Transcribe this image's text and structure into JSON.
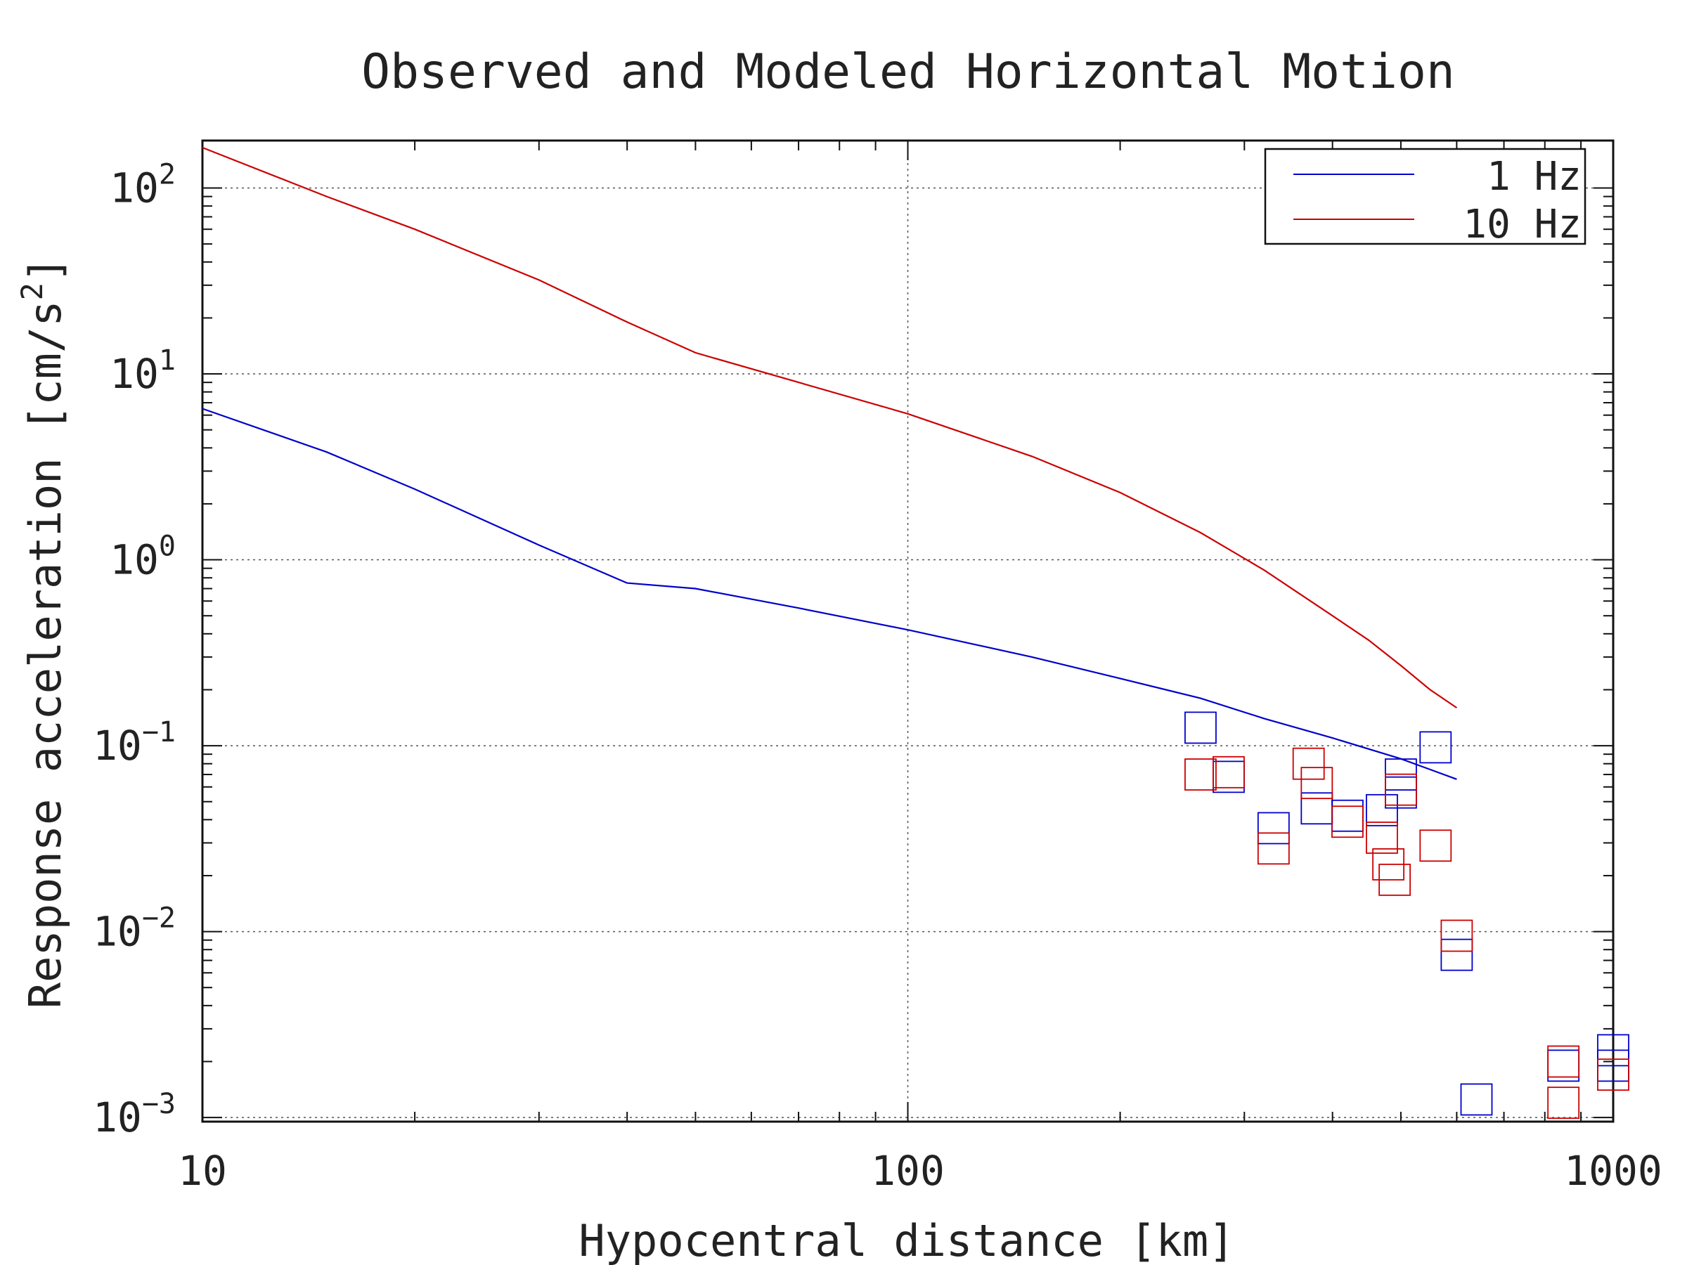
{
  "chart_data": {
    "type": "line",
    "title": "Observed and Modeled Horizontal Motion",
    "xlabel": "Hypocentral distance [km]",
    "ylabel_main": "Response acceleration [cm/s",
    "ylabel_sup": "2",
    "ylabel_close": "]",
    "x_scale": "log",
    "y_scale": "log",
    "xlim": [
      10,
      1000
    ],
    "ylim": [
      0.00095,
      180
    ],
    "grid": true,
    "legend_position": "top-right",
    "x_ticks": [
      {
        "value": 10,
        "label": "10"
      },
      {
        "value": 100,
        "label": "100"
      },
      {
        "value": 1000,
        "label": "1000"
      }
    ],
    "y_ticks": [
      {
        "value": 100,
        "base": "10",
        "exp": "2"
      },
      {
        "value": 10,
        "base": "10",
        "exp": "1"
      },
      {
        "value": 1,
        "base": "10",
        "exp": "0"
      },
      {
        "value": 0.1,
        "base": "10",
        "exp": "−1"
      },
      {
        "value": 0.01,
        "base": "10",
        "exp": "−2"
      },
      {
        "value": 0.001,
        "base": "10",
        "exp": "−3"
      }
    ],
    "series": [
      {
        "name": "1 Hz",
        "color": "#0000cc",
        "x": [
          10,
          15,
          20,
          30,
          40,
          50,
          70,
          100,
          150,
          200,
          260,
          320,
          400,
          500,
          600
        ],
        "y": [
          6.5,
          3.8,
          2.4,
          1.2,
          0.75,
          0.7,
          0.55,
          0.42,
          0.3,
          0.23,
          0.18,
          0.14,
          0.11,
          0.085,
          0.066
        ]
      },
      {
        "name": "10 Hz",
        "color": "#cc0000",
        "x": [
          10,
          15,
          20,
          30,
          40,
          50,
          70,
          100,
          150,
          200,
          260,
          320,
          400,
          450,
          500,
          550,
          600
        ],
        "y": [
          165,
          90,
          60,
          32,
          19,
          13,
          9,
          6.1,
          3.6,
          2.3,
          1.4,
          0.88,
          0.5,
          0.37,
          0.27,
          0.2,
          0.16
        ]
      }
    ],
    "observed": [
      {
        "name": "1 Hz observed",
        "color": "#0000cc",
        "x": [
          260,
          285,
          330,
          380,
          420,
          470,
          500,
          500,
          560,
          600,
          640,
          850,
          1000,
          1000
        ],
        "y": [
          0.125,
          0.068,
          0.036,
          0.046,
          0.042,
          0.045,
          0.07,
          0.056,
          0.098,
          0.0075,
          0.00125,
          0.0019,
          0.0023,
          0.0019
        ]
      },
      {
        "name": "10 Hz observed",
        "color": "#cc0000",
        "x": [
          260,
          285,
          330,
          370,
          380,
          420,
          470,
          480,
          490,
          500,
          560,
          600,
          850,
          850,
          1000
        ],
        "y": [
          0.07,
          0.072,
          0.028,
          0.08,
          0.063,
          0.039,
          0.032,
          0.023,
          0.019,
          0.058,
          0.029,
          0.0095,
          0.002,
          0.0012,
          0.0017
        ]
      }
    ]
  }
}
